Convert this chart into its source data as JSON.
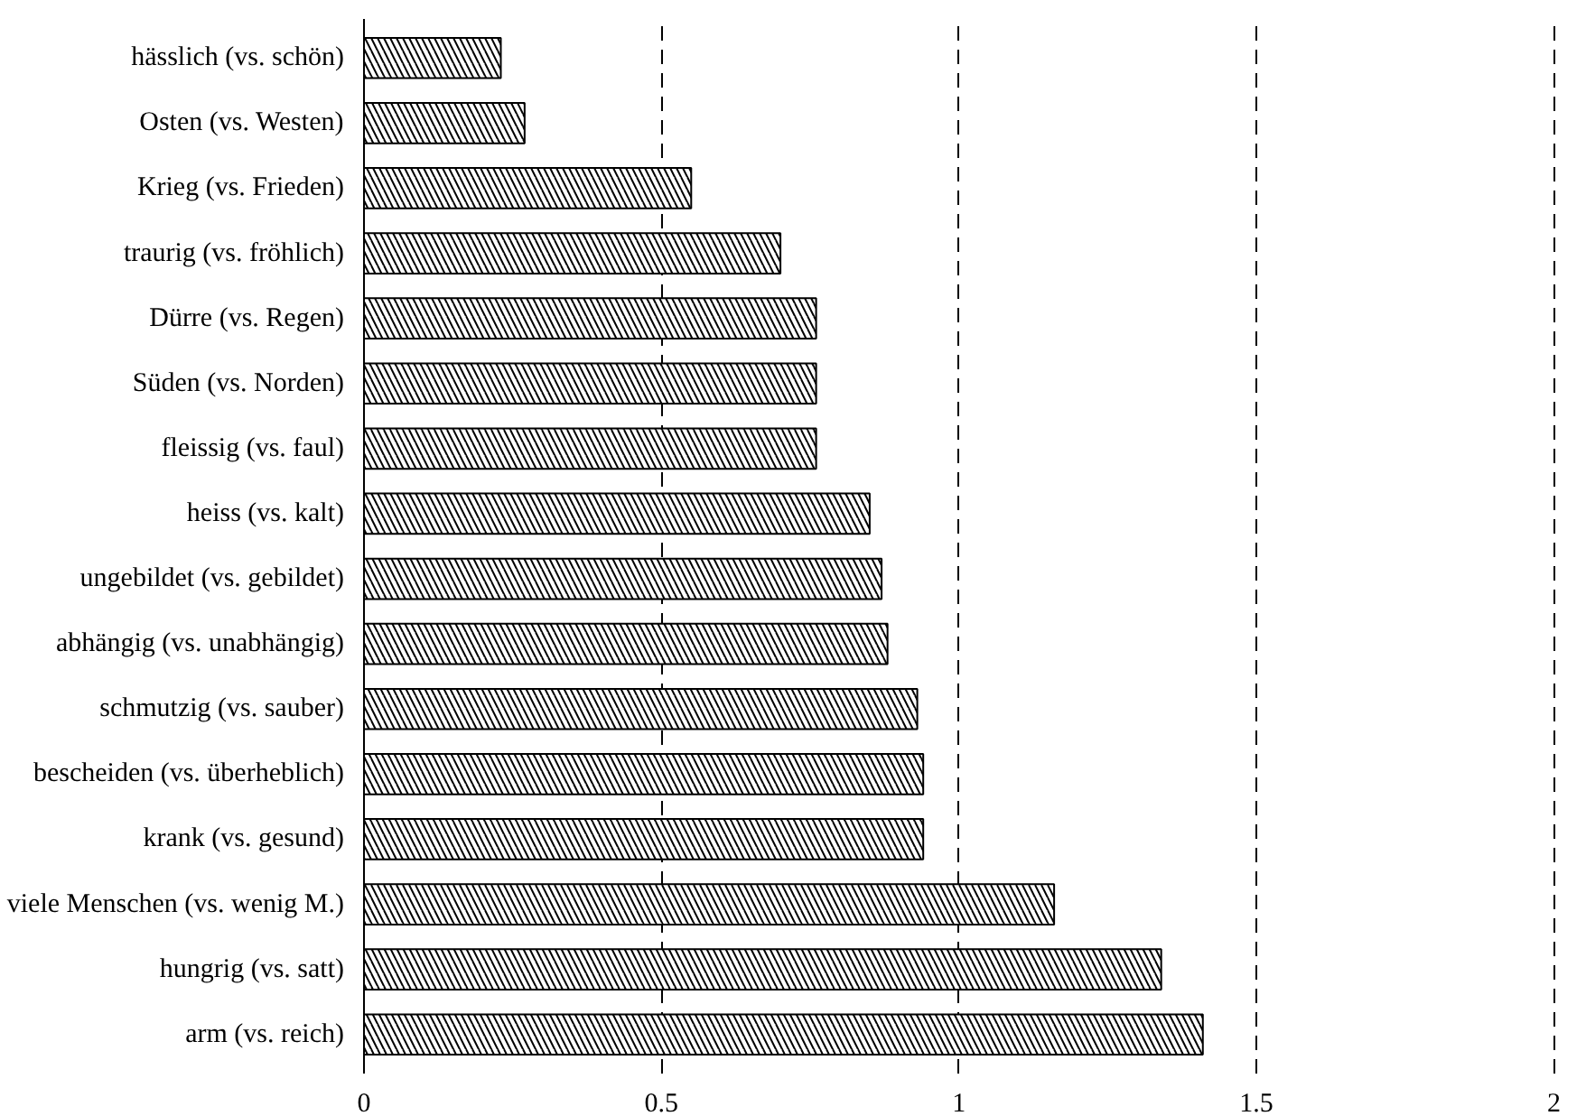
{
  "chart_data": {
    "type": "bar",
    "orientation": "horizontal",
    "categories": [
      "hässlich (vs. schön)",
      "Osten (vs. Westen)",
      "Krieg (vs. Frieden)",
      "traurig (vs. fröhlich)",
      "Dürre (vs. Regen)",
      "Süden (vs. Norden)",
      "fleissig (vs. faul)",
      "heiss (vs. kalt)",
      "ungebildet (vs. gebildet)",
      "abhängig (vs. unabhängig)",
      "schmutzig (vs. sauber)",
      "bescheiden (vs. überheblich)",
      "krank (vs. gesund)",
      "viele Menschen (vs. wenig M.)",
      "hungrig (vs. satt)",
      "arm (vs. reich)"
    ],
    "values": [
      0.23,
      0.27,
      0.55,
      0.7,
      0.76,
      0.76,
      0.76,
      0.85,
      0.87,
      0.88,
      0.93,
      0.94,
      0.94,
      1.16,
      1.34,
      1.41
    ],
    "color": "#000000",
    "xlim": [
      0,
      2.01
    ],
    "xticks": [
      0,
      0.5,
      1,
      1.5,
      2
    ],
    "grid": "x"
  }
}
